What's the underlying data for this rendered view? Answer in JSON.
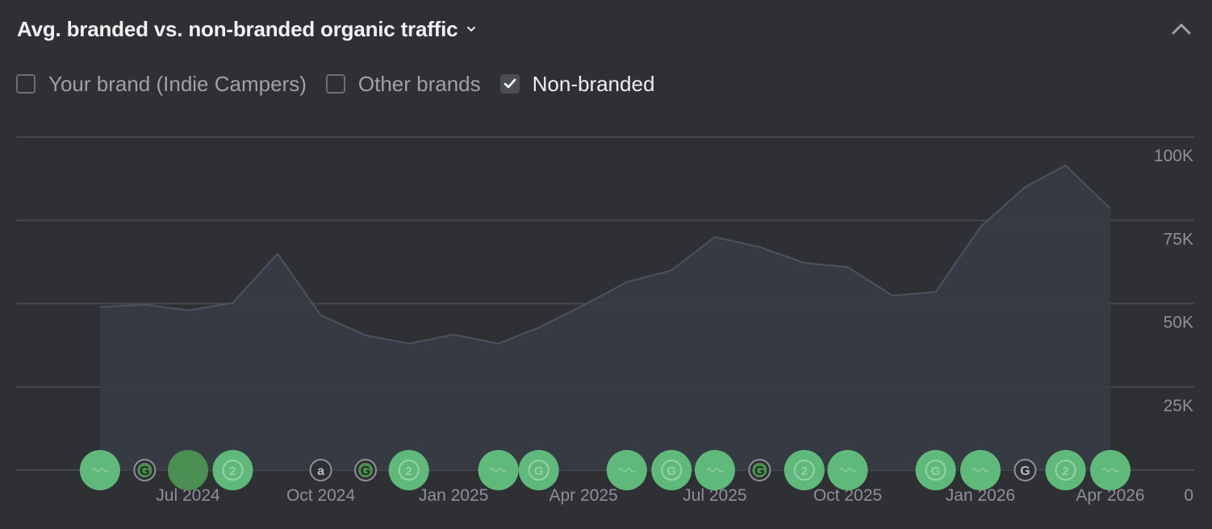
{
  "header": {
    "title": "Avg. branded vs. non-branded organic traffic"
  },
  "filters": [
    {
      "label": "Your brand (Indie Campers)",
      "checked": false
    },
    {
      "label": "Other brands",
      "checked": false
    },
    {
      "label": "Non-branded",
      "checked": true
    }
  ],
  "colors": {
    "background": "#2f3034",
    "area_fill": "#373c44",
    "area_line": "#4d535c",
    "marker_green": "#5fb97a",
    "marker_dark_green": "#4c8f53",
    "marker_outline": "#8d9097"
  },
  "chart_data": {
    "type": "area",
    "title": "Avg. branded vs. non-branded organic traffic",
    "series": [
      {
        "name": "Non-branded",
        "x": [
          "2024-05-01",
          "2024-06-01",
          "2024-07-01",
          "2024-08-01",
          "2024-09-01",
          "2024-10-01",
          "2024-11-01",
          "2024-12-01",
          "2025-01-01",
          "2025-02-01",
          "2025-03-01",
          "2025-04-01",
          "2025-05-01",
          "2025-06-01",
          "2025-07-01",
          "2025-08-01",
          "2025-09-01",
          "2025-10-01",
          "2025-11-01",
          "2025-12-01",
          "2026-01-01",
          "2026-02-01",
          "2026-03-01",
          "2026-04-01"
        ],
        "values": [
          49000,
          49700,
          48000,
          50200,
          65000,
          46500,
          40500,
          38000,
          40700,
          38000,
          42800,
          49500,
          56500,
          60000,
          70000,
          67000,
          62200,
          61000,
          52400,
          53500,
          73000,
          85000,
          91500,
          78500
        ]
      }
    ],
    "xticks": [
      "Jul 2024",
      "Oct 2024",
      "Jan 2025",
      "Apr 2025",
      "Jul 2025",
      "Oct 2025",
      "Jan 2026",
      "Apr 2026"
    ],
    "xtick_dates": [
      "2024-07-01",
      "2024-10-01",
      "2025-01-01",
      "2025-04-01",
      "2025-07-01",
      "2025-10-01",
      "2026-01-01",
      "2026-04-01"
    ],
    "yticks": [
      0,
      25000,
      50000,
      75000,
      100000
    ],
    "ytick_labels": [
      "0",
      "25K",
      "50K",
      "75K",
      "100K"
    ],
    "ylim": [
      0,
      100000
    ],
    "xlim": [
      "2024-03-01",
      "2026-05-01"
    ],
    "grid": true,
    "event_markers": [
      {
        "date": "2024-05-01",
        "icon": "wave",
        "style": "large"
      },
      {
        "date": "2024-06-01",
        "icon": "G",
        "style": "small"
      },
      {
        "date": "2024-07-01",
        "icon": "",
        "style": "large-dark"
      },
      {
        "date": "2024-08-01",
        "icon": "2",
        "style": "large"
      },
      {
        "date": "2024-10-01",
        "icon": "a",
        "style": "small-gray"
      },
      {
        "date": "2024-11-01",
        "icon": "G",
        "style": "small"
      },
      {
        "date": "2024-12-01",
        "icon": "2",
        "style": "large"
      },
      {
        "date": "2025-02-01",
        "icon": "wave",
        "style": "large"
      },
      {
        "date": "2025-03-01",
        "icon": "G",
        "style": "large"
      },
      {
        "date": "2025-05-01",
        "icon": "wave",
        "style": "large"
      },
      {
        "date": "2025-06-01",
        "icon": "G",
        "style": "large"
      },
      {
        "date": "2025-07-01",
        "icon": "wave",
        "style": "large"
      },
      {
        "date": "2025-08-01",
        "icon": "G",
        "style": "small"
      },
      {
        "date": "2025-09-01",
        "icon": "2",
        "style": "large"
      },
      {
        "date": "2025-10-01",
        "icon": "wave",
        "style": "large"
      },
      {
        "date": "2025-12-01",
        "icon": "G",
        "style": "large"
      },
      {
        "date": "2026-01-01",
        "icon": "wave",
        "style": "large"
      },
      {
        "date": "2026-02-01",
        "icon": "G",
        "style": "small-gray"
      },
      {
        "date": "2026-03-01",
        "icon": "2",
        "style": "large"
      },
      {
        "date": "2026-04-01",
        "icon": "wave",
        "style": "large"
      }
    ]
  }
}
